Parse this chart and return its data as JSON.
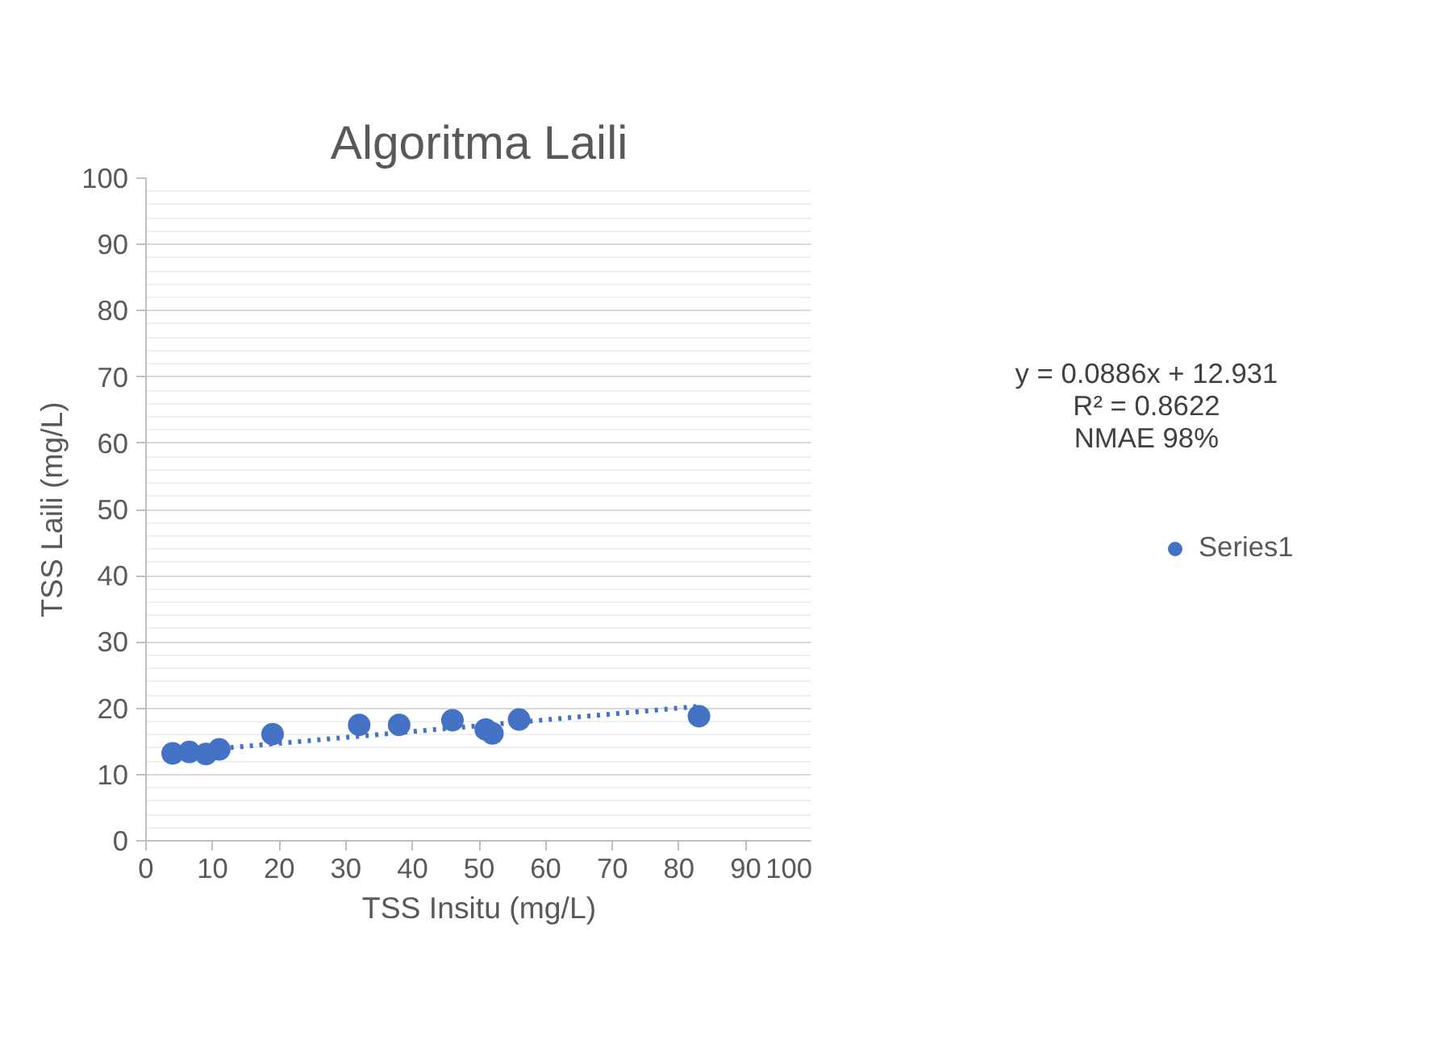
{
  "chart_data": {
    "type": "scatter",
    "title": "Algoritma Laili",
    "xlabel": "TSS Insitu (mg/L)",
    "ylabel": "TSS Laili (mg/L)",
    "annotations": [
      "y = 0.0886x + 12.931",
      "R² = 0.8622",
      "NMAE 98%"
    ],
    "series": [
      {
        "name": "Series1",
        "color": "#4472c4",
        "x": [
          4,
          6.5,
          9,
          11,
          19,
          32,
          38,
          46,
          51,
          52,
          56,
          83
        ],
        "values": [
          13.2,
          13.4,
          13.1,
          13.8,
          16.1,
          17.5,
          17.5,
          18.2,
          16.8,
          16.2,
          18.3,
          18.8
        ]
      },
      {
        "type": "line",
        "color": "#4472c4",
        "line_style": "dotted",
        "marker": "none",
        "x": [
          4,
          83
        ],
        "values": [
          13.3,
          20.3
        ]
      }
    ],
    "marker": "circle",
    "xlim": [
      0,
      100
    ],
    "ylim": [
      0,
      100
    ],
    "xticks": [
      0,
      10,
      20,
      30,
      40,
      50,
      60,
      70,
      80,
      90,
      100
    ],
    "yticks": [
      0,
      10,
      20,
      30,
      40,
      50,
      60,
      70,
      80,
      90,
      100
    ],
    "grid": "y",
    "legend": "right"
  }
}
